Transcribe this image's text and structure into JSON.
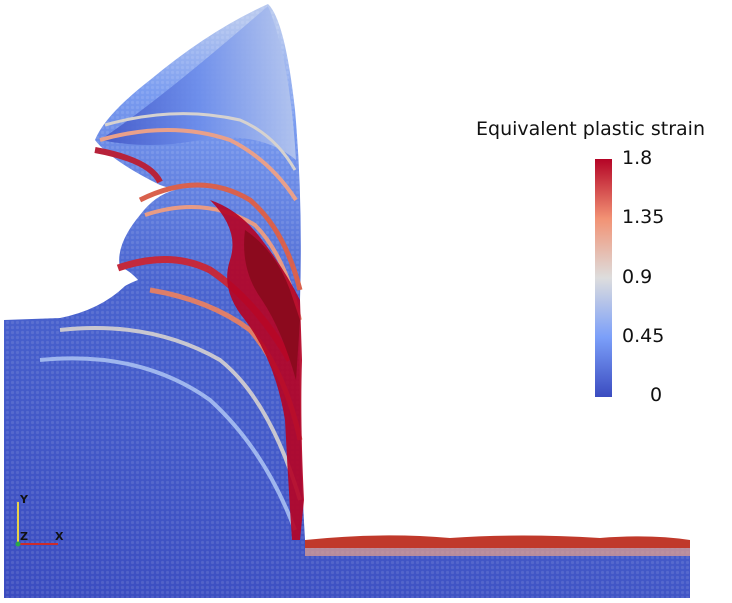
{
  "colormap": {
    "stops": [
      "#3b4cc0",
      "#6f92f3",
      "#aac7fd",
      "#dddddd",
      "#f7b89c",
      "#e7745b",
      "#b40426"
    ]
  },
  "legend": {
    "title": "Equivalent plastic strain",
    "ticks": [
      "1.8",
      "1.35",
      "0.9",
      "0.45",
      "0"
    ],
    "range": [
      0,
      1.8
    ]
  },
  "orientation_axes": {
    "y_label": "Y",
    "z_label": "Z",
    "x_label": "X"
  },
  "colors": {
    "background": "#ffffff",
    "text": "#111111"
  }
}
